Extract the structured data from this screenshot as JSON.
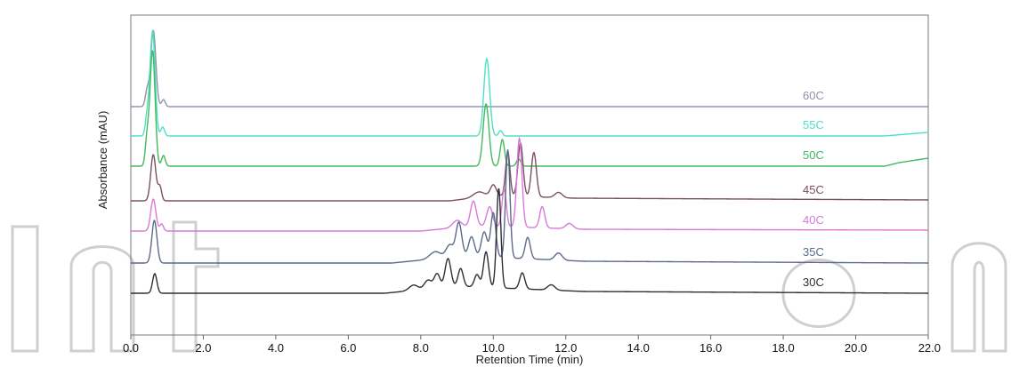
{
  "chart_data": {
    "type": "line",
    "title": "",
    "xlabel": "Retention Time (min)",
    "ylabel": "Absorbance (mAU)",
    "xlim": [
      0,
      22
    ],
    "xticks": [
      "0.0",
      "2.0",
      "4.0",
      "6.0",
      "8.0",
      "10.0",
      "12.0",
      "14.0",
      "16.0",
      "18.0",
      "20.0",
      "22.0"
    ],
    "grid": false,
    "legend": "inline-right",
    "series": [
      {
        "name": "60C",
        "color": "#8f96a8",
        "baseline": 120,
        "peaks": [
          [
            0.62,
            86,
            0.07
          ],
          [
            0.45,
            18,
            0.05
          ],
          [
            0.9,
            8,
            0.05
          ],
          [
            9.85,
            0,
            0.1
          ]
        ],
        "drift": [
          [
            21.6,
            0
          ],
          [
            22.0,
            0
          ]
        ]
      },
      {
        "name": "55C",
        "color": "#4ee0c6",
        "baseline": 153,
        "peaks": [
          [
            0.6,
            118,
            0.07
          ],
          [
            0.45,
            20,
            0.05
          ],
          [
            0.88,
            10,
            0.05
          ],
          [
            9.82,
            87,
            0.08
          ],
          [
            10.2,
            6,
            0.05
          ]
        ],
        "drift": [
          [
            20.8,
            0
          ],
          [
            22.0,
            4
          ]
        ]
      },
      {
        "name": "50C",
        "color": "#42b95e",
        "baseline": 187,
        "peaks": [
          [
            0.6,
            130,
            0.07
          ],
          [
            0.45,
            30,
            0.05
          ],
          [
            0.9,
            12,
            0.05
          ],
          [
            9.8,
            70,
            0.08
          ],
          [
            10.25,
            30,
            0.06
          ],
          [
            10.7,
            8,
            0.06
          ]
        ],
        "drift": [
          [
            20.8,
            0
          ],
          [
            21.2,
            4
          ],
          [
            22.0,
            9
          ]
        ]
      },
      {
        "name": "45C",
        "color": "#7a5060",
        "baseline": 226,
        "peaks": [
          [
            0.62,
            52,
            0.07
          ],
          [
            0.8,
            16,
            0.05
          ],
          [
            9.6,
            6,
            0.15
          ],
          [
            10.0,
            12,
            0.08
          ],
          [
            10.4,
            50,
            0.06
          ],
          [
            10.75,
            60,
            0.07
          ],
          [
            11.12,
            50,
            0.07
          ],
          [
            11.8,
            6,
            0.1
          ]
        ],
        "drift": [
          [
            8.8,
            0
          ],
          [
            10.0,
            6
          ],
          [
            12.2,
            3
          ],
          [
            22.0,
            1
          ]
        ]
      },
      {
        "name": "40C",
        "color": "#d979d9",
        "baseline": 260,
        "peaks": [
          [
            0.62,
            36,
            0.07
          ],
          [
            0.85,
            8,
            0.05
          ],
          [
            9.0,
            8,
            0.12
          ],
          [
            9.45,
            28,
            0.08
          ],
          [
            9.9,
            22,
            0.08
          ],
          [
            10.3,
            42,
            0.06
          ],
          [
            10.72,
            100,
            0.07
          ],
          [
            11.35,
            24,
            0.07
          ],
          [
            12.1,
            6,
            0.1
          ]
        ],
        "drift": [
          [
            8.0,
            0
          ],
          [
            9.5,
            6
          ],
          [
            12.5,
            2
          ],
          [
            22.0,
            1
          ]
        ]
      },
      {
        "name": "35C",
        "color": "#5d6a8c",
        "baseline": 296,
        "peaks": [
          [
            0.65,
            48,
            0.07
          ],
          [
            8.4,
            8,
            0.15
          ],
          [
            8.8,
            14,
            0.1
          ],
          [
            9.05,
            38,
            0.08
          ],
          [
            9.4,
            22,
            0.08
          ],
          [
            9.75,
            28,
            0.08
          ],
          [
            10.0,
            50,
            0.07
          ],
          [
            10.4,
            122,
            0.06
          ],
          [
            10.95,
            24,
            0.07
          ],
          [
            11.8,
            8,
            0.1
          ]
        ],
        "drift": [
          [
            7.2,
            0
          ],
          [
            9.2,
            8
          ],
          [
            12.5,
            2
          ],
          [
            22.0,
            0
          ]
        ]
      },
      {
        "name": "30C",
        "color": "#2f2f37",
        "baseline": 330,
        "peaks": [
          [
            0.66,
            22,
            0.06
          ],
          [
            7.8,
            6,
            0.12
          ],
          [
            8.2,
            10,
            0.1
          ],
          [
            8.45,
            16,
            0.08
          ],
          [
            8.75,
            32,
            0.08
          ],
          [
            9.1,
            20,
            0.07
          ],
          [
            9.55,
            14,
            0.07
          ],
          [
            9.8,
            40,
            0.07
          ],
          [
            10.15,
            112,
            0.06
          ],
          [
            10.8,
            18,
            0.07
          ],
          [
            11.6,
            6,
            0.1
          ]
        ],
        "drift": [
          [
            7.0,
            0
          ],
          [
            9.0,
            8
          ],
          [
            12.5,
            2
          ],
          [
            22.0,
            0
          ]
        ]
      }
    ]
  },
  "watermark": {
    "brand": "IntechOpen",
    "color": "#c9c9c9"
  }
}
